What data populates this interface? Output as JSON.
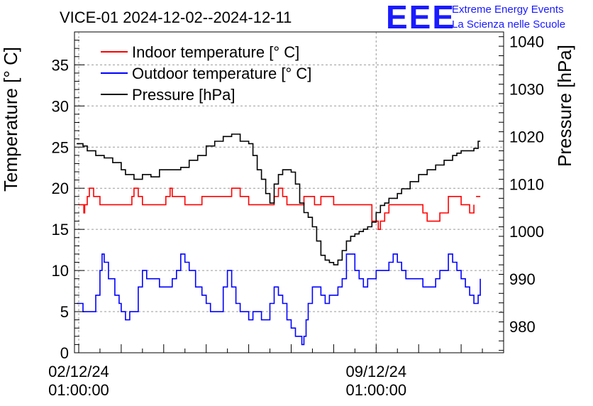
{
  "chart_data": {
    "type": "line",
    "title": "VICE-01 2024-12-02--2024-12-11",
    "logo": {
      "mark": "EEE",
      "line1": "Extreme Energy Events",
      "line2": "La Scienza nelle Scuole"
    },
    "ylabel": "Temperature [° C]",
    "y2label": "Pressure [hPa]",
    "ylim": [
      0,
      39
    ],
    "y2lim": [
      974.5,
      1042
    ],
    "yticks": [
      0,
      5,
      10,
      15,
      20,
      25,
      30,
      35
    ],
    "y2ticks": [
      980,
      990,
      1000,
      1010,
      1020,
      1030,
      1040
    ],
    "xlim": [
      -0.1,
      10.0
    ],
    "xticks": [
      {
        "x": 0,
        "date": "02/12/24",
        "time": "01:00:00"
      },
      {
        "x": 7,
        "date": "09/12/24",
        "time": "01:00:00"
      }
    ],
    "grid": true,
    "legend_position": "top-left",
    "series": [
      {
        "name": "Indoor temperature [° C]",
        "color": "#ff0000",
        "axis": "left",
        "x": [
          0,
          0.1,
          0.12,
          0.14,
          0.2,
          0.25,
          0.3,
          0.35,
          0.45,
          0.5,
          0.55,
          0.65,
          0.7,
          1.2,
          1.25,
          1.3,
          1.4,
          1.45,
          1.5,
          1.55,
          2.0,
          2.05,
          2.15,
          2.2,
          2.3,
          2.5,
          2.6,
          2.8,
          2.9,
          3.5,
          3.6,
          3.7,
          3.8,
          3.9,
          4.0,
          4.5,
          4.6,
          4.7,
          4.8,
          4.9,
          5.0,
          5.2,
          5.3,
          5.5,
          5.55,
          5.6,
          5.65,
          5.7,
          5.75,
          6.0,
          6.2,
          6.9,
          7.0,
          7.05,
          7.1,
          7.2,
          7.3,
          7.5,
          7.6,
          8.0,
          8.1,
          8.2,
          8.3,
          8.5,
          8.7,
          8.9,
          9.0,
          9.1,
          9.2,
          9.3
        ],
        "y": [
          18,
          18,
          17,
          18,
          19,
          20,
          20,
          19,
          19,
          18,
          18,
          18,
          18,
          18,
          19,
          20,
          19,
          19,
          18,
          18,
          18,
          19,
          20,
          19,
          19,
          18,
          18,
          18,
          19,
          19,
          20,
          20,
          19,
          19,
          18,
          18,
          19,
          20,
          19,
          18,
          18,
          18,
          19,
          19,
          18,
          18,
          18,
          19,
          19,
          18,
          18,
          16,
          16,
          15,
          16,
          17,
          18,
          18,
          18,
          18,
          17,
          16,
          16,
          17,
          19,
          19,
          18,
          18,
          17,
          18
        ],
        "x2": [
          9.35,
          9.4,
          9.45
        ],
        "y2": [
          19,
          19,
          19
        ]
      },
      {
        "name": "Outdoor temperature [° C]",
        "color": "#0000ff",
        "axis": "left",
        "x": [
          -0.05,
          0.05,
          0.1,
          0.3,
          0.4,
          0.5,
          0.55,
          0.6,
          0.7,
          0.85,
          0.95,
          1.0,
          1.1,
          1.2,
          1.4,
          1.5,
          1.6,
          1.75,
          1.9,
          2.0,
          2.1,
          2.2,
          2.3,
          2.4,
          2.5,
          2.6,
          2.75,
          2.9,
          3.0,
          3.1,
          3.2,
          3.4,
          3.5,
          3.6,
          3.7,
          3.8,
          3.9,
          4.0,
          4.1,
          4.2,
          4.3,
          4.5,
          4.6,
          4.7,
          4.8,
          4.9,
          5.0,
          5.1,
          5.2,
          5.25,
          5.3,
          5.35,
          5.4,
          5.5,
          5.6,
          5.7,
          5.8,
          5.9,
          6.0,
          6.1,
          6.2,
          6.3,
          6.5,
          6.6,
          6.7,
          6.8,
          6.9,
          7.0,
          7.1,
          7.2,
          7.3,
          7.4,
          7.5,
          7.6,
          7.7,
          7.8,
          8.0,
          8.1,
          8.2,
          8.4,
          8.5,
          8.6,
          8.7,
          8.8,
          8.9,
          9.0,
          9.1,
          9.2,
          9.3,
          9.4,
          9.45
        ],
        "y": [
          6,
          6,
          5,
          5,
          7,
          10,
          12,
          11,
          9,
          7,
          6,
          5,
          4,
          5,
          8,
          10,
          9,
          9,
          8,
          8,
          8,
          9,
          10,
          12,
          11,
          10,
          8,
          7,
          6,
          5,
          5,
          8,
          10,
          8,
          6,
          5,
          5,
          4,
          5,
          5,
          4,
          6,
          8,
          7,
          6,
          4,
          3,
          2,
          2,
          1,
          2,
          4,
          6,
          8,
          8,
          7,
          6,
          7,
          7,
          8,
          9,
          12,
          10,
          9,
          8,
          9,
          9,
          10,
          10,
          10,
          11,
          12,
          11,
          10,
          9,
          9,
          9,
          8,
          8,
          9,
          10,
          10,
          12,
          11,
          10,
          9,
          8,
          7,
          6,
          7,
          9
        ]
      },
      {
        "name": "Pressure [hPa]",
        "color": "#000000",
        "axis": "right",
        "x": [
          -0.05,
          0.1,
          0.2,
          0.3,
          0.4,
          0.6,
          0.8,
          1.0,
          1.1,
          1.3,
          1.5,
          1.7,
          1.9,
          2.0,
          2.2,
          2.4,
          2.6,
          2.8,
          3.0,
          3.2,
          3.4,
          3.6,
          3.8,
          3.9,
          4.0,
          4.1,
          4.2,
          4.3,
          4.4,
          4.5,
          4.6,
          4.7,
          4.8,
          4.9,
          5.0,
          5.1,
          5.2,
          5.3,
          5.4,
          5.5,
          5.6,
          5.7,
          5.8,
          5.9,
          6.0,
          6.1,
          6.2,
          6.3,
          6.4,
          6.5,
          6.6,
          6.7,
          6.8,
          6.9,
          7.0,
          7.1,
          7.2,
          7.3,
          7.5,
          7.6,
          7.8,
          8.0,
          8.2,
          8.4,
          8.6,
          8.8,
          8.9,
          9.0,
          9.1,
          9.2,
          9.3,
          9.4,
          9.45
        ],
        "y": [
          1018.5,
          1018,
          1017,
          1017,
          1016,
          1015.5,
          1014.5,
          1013,
          1012,
          1011,
          1012,
          1011.5,
          1013,
          1013,
          1013,
          1013.5,
          1015,
          1016,
          1018,
          1019,
          1020,
          1020.5,
          1019,
          1019,
          1018.5,
          1016,
          1013,
          1011,
          1008,
          1006,
          1010,
          1012,
          1013,
          1013,
          1012.5,
          1010,
          1006,
          1004,
          1003,
          1001,
          998,
          995,
          994,
          993.5,
          993,
          994,
          996,
          998,
          999,
          999.5,
          1000,
          1000.5,
          1001,
          1002,
          1004,
          1005.5,
          1006,
          1007,
          1008,
          1009,
          1010.5,
          1012,
          1013,
          1014,
          1015,
          1016,
          1016.5,
          1017,
          1017,
          1017,
          1017.5,
          1019,
          1019
        ]
      }
    ]
  }
}
